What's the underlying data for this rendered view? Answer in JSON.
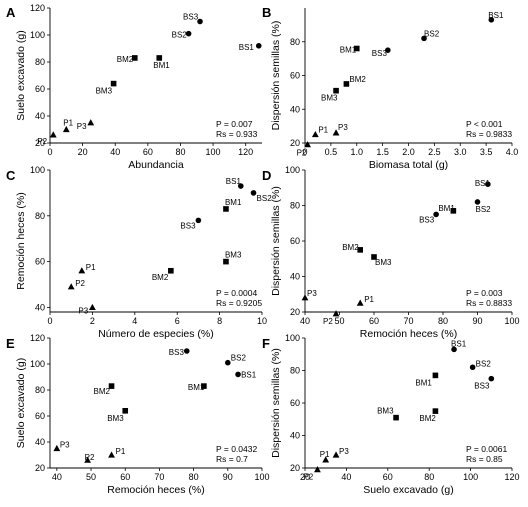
{
  "chart_data": [
    {
      "type": "scatter",
      "panel": "A",
      "xlabel": "Abundancia",
      "ylabel": "Suelo excavado (g)",
      "xlim": [
        0,
        130
      ],
      "ylim": [
        20,
        120
      ],
      "xticks": [
        "0",
        "20",
        "40",
        "60",
        "80",
        "100",
        "120"
      ],
      "yticks": [
        "20",
        "40",
        "60",
        "80",
        "100",
        "120"
      ],
      "stats": [
        "P = 0.007",
        "Rs = 0.933"
      ],
      "points": [
        {
          "label": "BS1",
          "shape": "circle",
          "x": 128,
          "y": 92
        },
        {
          "label": "BS2",
          "shape": "circle",
          "x": 85,
          "y": 101
        },
        {
          "label": "BS3",
          "shape": "circle",
          "x": 92,
          "y": 110
        },
        {
          "label": "BM1",
          "shape": "square",
          "x": 67,
          "y": 83
        },
        {
          "label": "BM2",
          "shape": "square",
          "x": 52,
          "y": 83
        },
        {
          "label": "BM3",
          "shape": "square",
          "x": 39,
          "y": 64
        },
        {
          "label": "P1",
          "shape": "triangle",
          "x": 10,
          "y": 30
        },
        {
          "label": "P2",
          "shape": "triangle",
          "x": 2,
          "y": 26
        },
        {
          "label": "P3",
          "shape": "triangle",
          "x": 25,
          "y": 35
        }
      ]
    },
    {
      "type": "scatter",
      "panel": "B",
      "xlabel": "Biomasa total (g)",
      "ylabel": "Dispersión semillas (%)",
      "xlim": [
        0,
        4.0
      ],
      "ylim": [
        20,
        100
      ],
      "xticks": [
        "0",
        "0.5",
        "1.0",
        "1.5",
        "2.0",
        "2.5",
        "3.0",
        "3.5",
        "4.0"
      ],
      "yticks": [
        "20",
        "40",
        "60",
        "80"
      ],
      "stats": [
        "P < 0.001",
        "Rs = 0.9833"
      ],
      "points": [
        {
          "label": "BS1",
          "shape": "circle",
          "x": 3.6,
          "y": 93
        },
        {
          "label": "BS2",
          "shape": "circle",
          "x": 2.3,
          "y": 82
        },
        {
          "label": "BS3",
          "shape": "circle",
          "x": 1.6,
          "y": 75
        },
        {
          "label": "BM1",
          "shape": "square",
          "x": 1.0,
          "y": 76
        },
        {
          "label": "BM2",
          "shape": "square",
          "x": 0.8,
          "y": 55
        },
        {
          "label": "BM3",
          "shape": "square",
          "x": 0.6,
          "y": 51
        },
        {
          "label": "P1",
          "shape": "triangle",
          "x": 0.2,
          "y": 25
        },
        {
          "label": "P2",
          "shape": "triangle",
          "x": 0.05,
          "y": 19
        },
        {
          "label": "P3",
          "shape": "triangle",
          "x": 0.6,
          "y": 26
        }
      ]
    },
    {
      "type": "scatter",
      "panel": "C",
      "xlabel": "Número de especies (%)",
      "ylabel": "Remoción heces (%)",
      "xlim": [
        0,
        10
      ],
      "ylim": [
        38,
        100
      ],
      "xticks": [
        "0",
        "2",
        "4",
        "6",
        "8",
        "10"
      ],
      "yticks": [
        "40",
        "60",
        "80",
        "100"
      ],
      "stats": [
        "P = 0.0004",
        "Rs = 0.9205"
      ],
      "points": [
        {
          "label": "BS1",
          "shape": "circle",
          "x": 9,
          "y": 93
        },
        {
          "label": "BS2",
          "shape": "circle",
          "x": 9.6,
          "y": 90
        },
        {
          "label": "BS3",
          "shape": "circle",
          "x": 7,
          "y": 78
        },
        {
          "label": "BM1",
          "shape": "square",
          "x": 8.3,
          "y": 83
        },
        {
          "label": "BM2",
          "shape": "square",
          "x": 5.7,
          "y": 56
        },
        {
          "label": "BM3",
          "shape": "square",
          "x": 8.3,
          "y": 60
        },
        {
          "label": "P1",
          "shape": "triangle",
          "x": 1.5,
          "y": 56
        },
        {
          "label": "P2",
          "shape": "triangle",
          "x": 1,
          "y": 49
        },
        {
          "label": "P3",
          "shape": "triangle",
          "x": 2,
          "y": 40
        }
      ]
    },
    {
      "type": "scatter",
      "panel": "D",
      "xlabel": "Remoción heces (%)",
      "ylabel": "Dispersión semillas (%)",
      "xlim": [
        40,
        100
      ],
      "ylim": [
        20,
        100
      ],
      "xticks": [
        "40",
        "50",
        "60",
        "70",
        "80",
        "90",
        "100"
      ],
      "yticks": [
        "20",
        "40",
        "60",
        "80",
        "100"
      ],
      "stats": [
        "P = 0.003",
        "Rs = 0.8833"
      ],
      "points": [
        {
          "label": "BS1",
          "shape": "circle",
          "x": 93,
          "y": 92
        },
        {
          "label": "BS2",
          "shape": "circle",
          "x": 90,
          "y": 82
        },
        {
          "label": "BS3",
          "shape": "circle",
          "x": 78,
          "y": 75
        },
        {
          "label": "BM1",
          "shape": "square",
          "x": 83,
          "y": 77
        },
        {
          "label": "BM2",
          "shape": "square",
          "x": 56,
          "y": 55
        },
        {
          "label": "BM3",
          "shape": "square",
          "x": 60,
          "y": 51
        },
        {
          "label": "P1",
          "shape": "triangle",
          "x": 56,
          "y": 25
        },
        {
          "label": "P2",
          "shape": "triangle",
          "x": 49,
          "y": 19
        },
        {
          "label": "P3",
          "shape": "triangle",
          "x": 40,
          "y": 28
        }
      ]
    },
    {
      "type": "scatter",
      "panel": "E",
      "xlabel": "Remoción heces (%)",
      "ylabel": "Suelo excavado (g)",
      "xlim": [
        38,
        100
      ],
      "ylim": [
        20,
        120
      ],
      "xticks": [
        "40",
        "50",
        "60",
        "70",
        "80",
        "90",
        "100"
      ],
      "yticks": [
        "20",
        "40",
        "60",
        "80",
        "100",
        "120"
      ],
      "stats": [
        "P = 0.0432",
        "Rs = 0.7"
      ],
      "points": [
        {
          "label": "BS1",
          "shape": "circle",
          "x": 93,
          "y": 92
        },
        {
          "label": "BS2",
          "shape": "circle",
          "x": 90,
          "y": 101
        },
        {
          "label": "BS3",
          "shape": "circle",
          "x": 78,
          "y": 110
        },
        {
          "label": "BM1",
          "shape": "square",
          "x": 83,
          "y": 83
        },
        {
          "label": "BM2",
          "shape": "square",
          "x": 56,
          "y": 83
        },
        {
          "label": "BM3",
          "shape": "square",
          "x": 60,
          "y": 64
        },
        {
          "label": "P1",
          "shape": "triangle",
          "x": 56,
          "y": 30
        },
        {
          "label": "P2",
          "shape": "triangle",
          "x": 49,
          "y": 26
        },
        {
          "label": "P3",
          "shape": "triangle",
          "x": 40,
          "y": 35
        }
      ]
    },
    {
      "type": "scatter",
      "panel": "F",
      "xlabel": "Suelo excavado (g)",
      "ylabel": "Dispersión semillas (%)",
      "xlim": [
        20,
        120
      ],
      "ylim": [
        20,
        100
      ],
      "xticks": [
        "20",
        "40",
        "60",
        "80",
        "100",
        "120"
      ],
      "yticks": [
        "20",
        "40",
        "60",
        "80",
        "100"
      ],
      "stats": [
        "P = 0.0061",
        "Rs = 0.85"
      ],
      "points": [
        {
          "label": "BS1",
          "shape": "circle",
          "x": 92,
          "y": 93
        },
        {
          "label": "BS2",
          "shape": "circle",
          "x": 101,
          "y": 82
        },
        {
          "label": "BS3",
          "shape": "circle",
          "x": 110,
          "y": 75
        },
        {
          "label": "BM1",
          "shape": "square",
          "x": 83,
          "y": 77
        },
        {
          "label": "BM2",
          "shape": "square",
          "x": 83,
          "y": 55
        },
        {
          "label": "BM3",
          "shape": "square",
          "x": 64,
          "y": 51
        },
        {
          "label": "P1",
          "shape": "triangle",
          "x": 30,
          "y": 25
        },
        {
          "label": "P2",
          "shape": "triangle",
          "x": 26,
          "y": 19
        },
        {
          "label": "P3",
          "shape": "triangle",
          "x": 35,
          "y": 28
        }
      ]
    }
  ]
}
